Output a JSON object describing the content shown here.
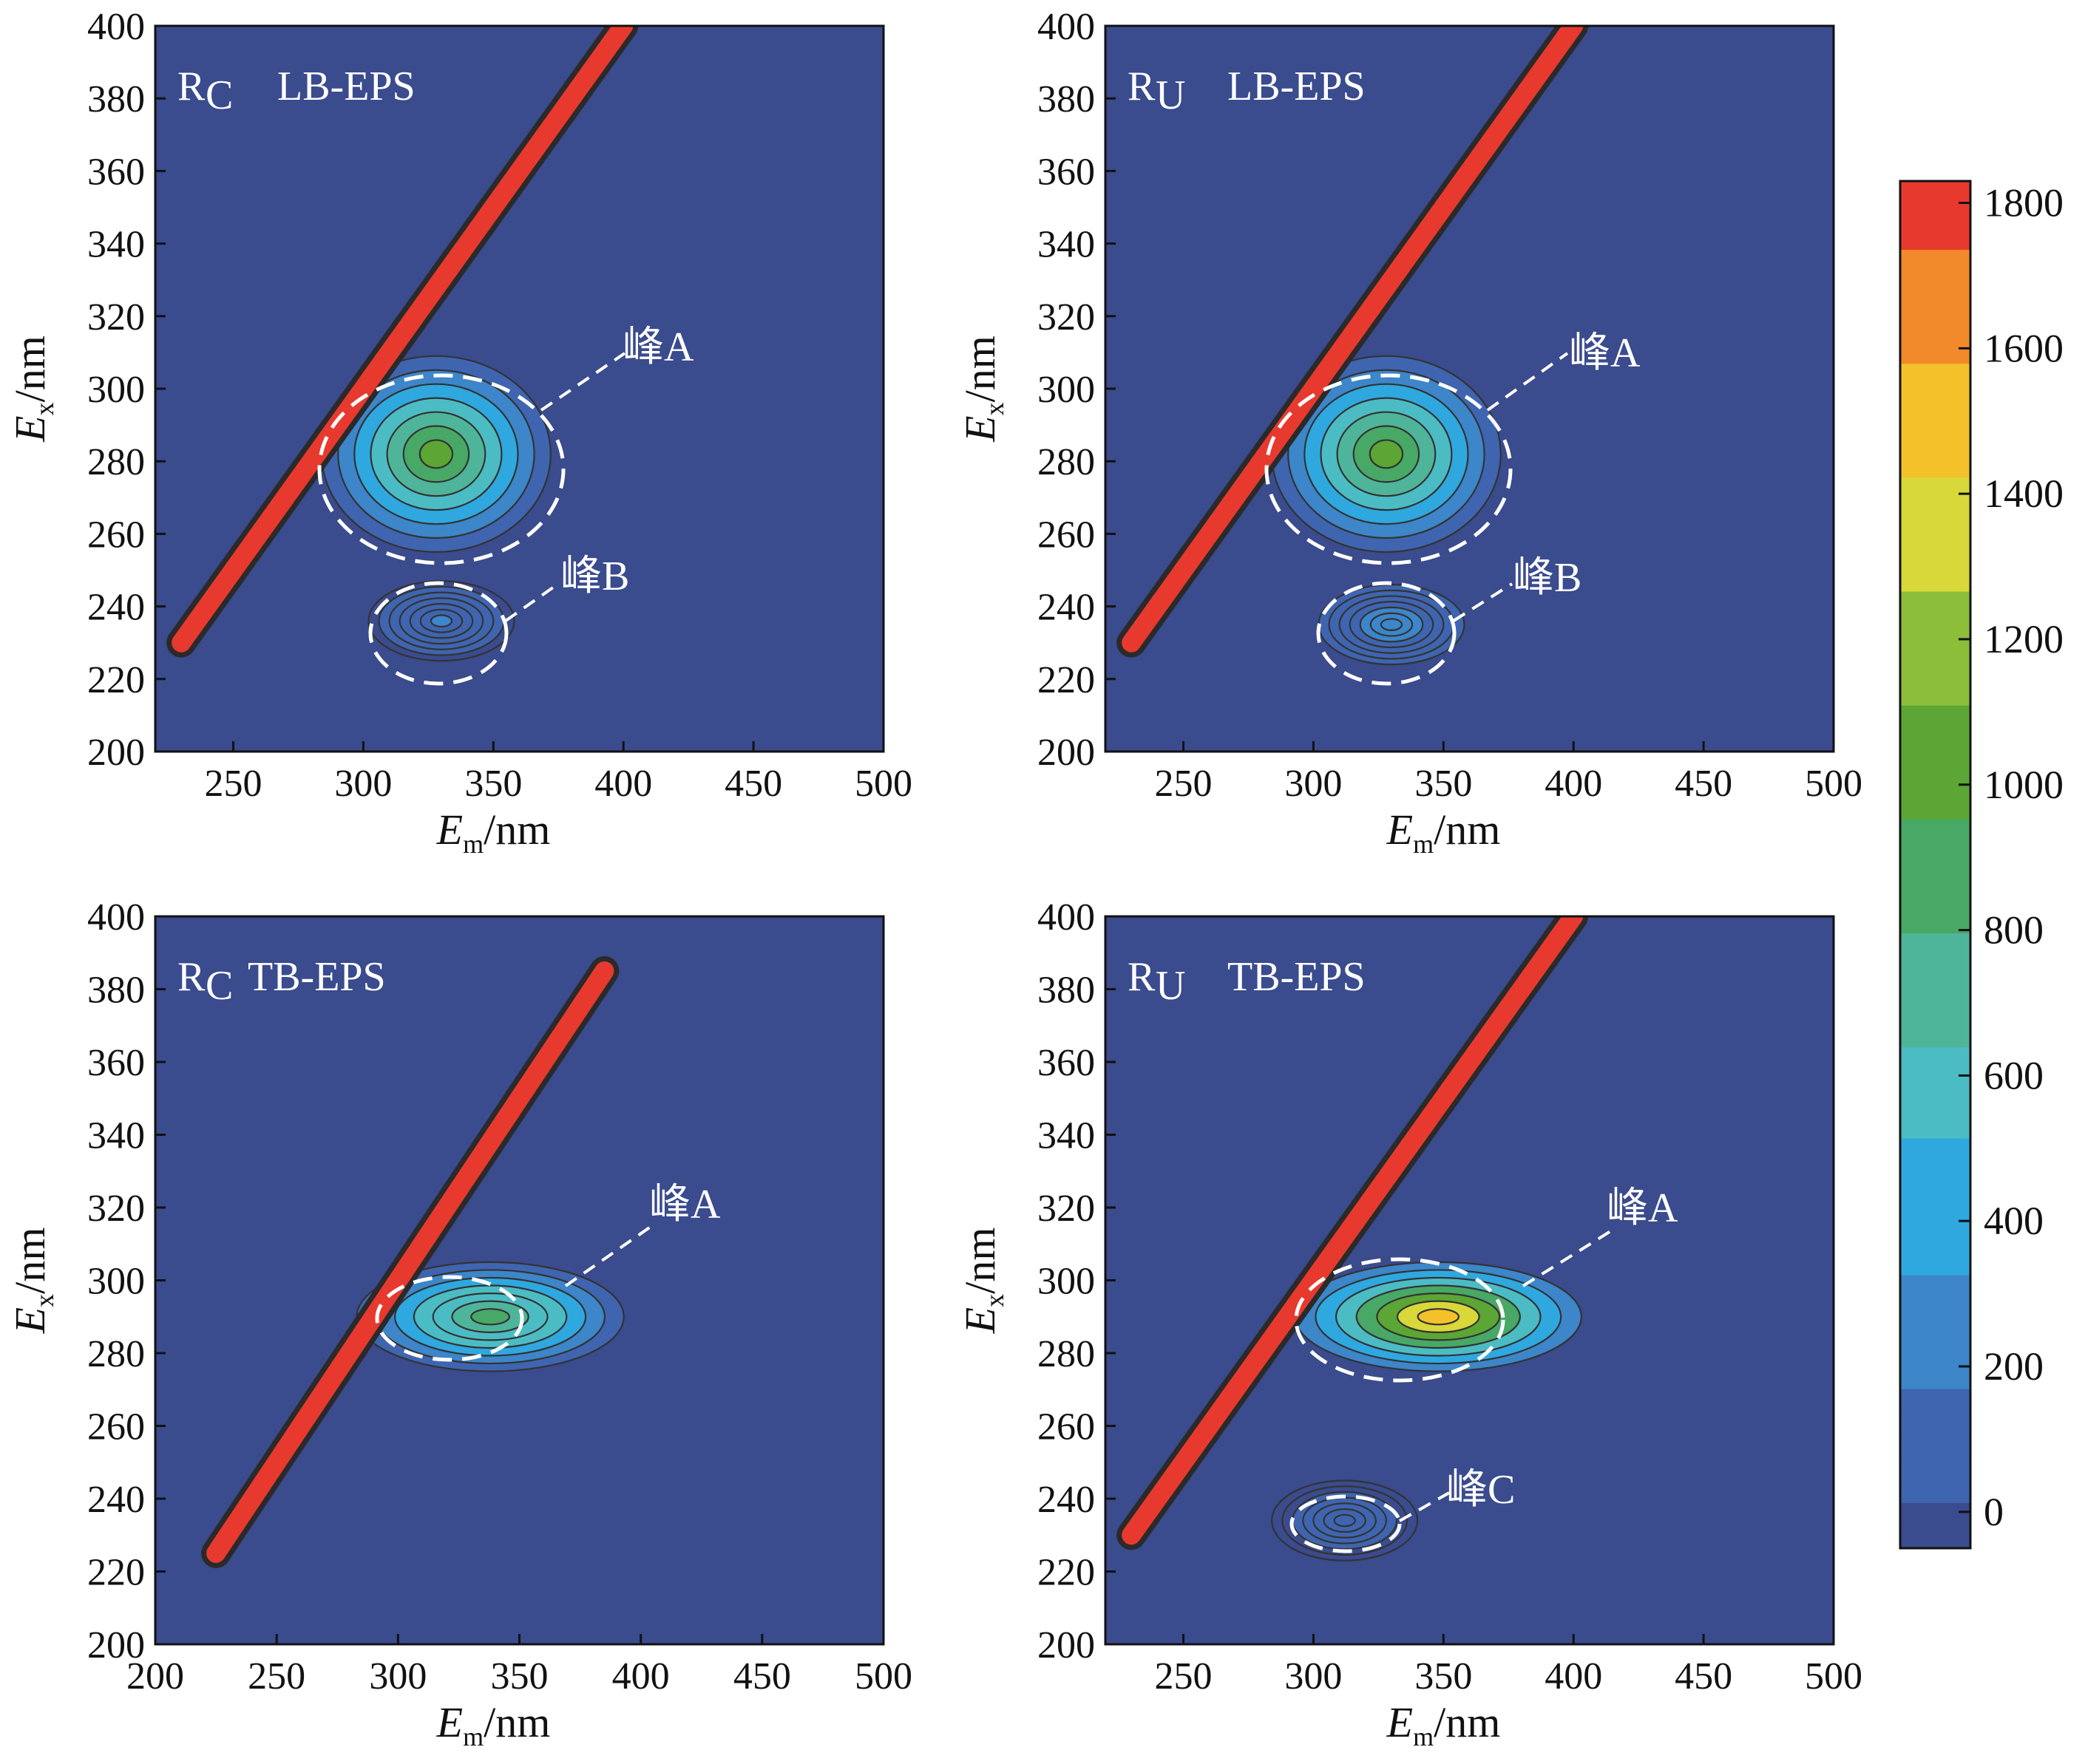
{
  "colors": {
    "background": "#3a4b8e",
    "diagonal": "#e8392e",
    "contour_line": "#333333",
    "colormap": [
      "#3a4b8e",
      "#3f65b0",
      "#3c86c9",
      "#2fa8e0",
      "#4cbcc4",
      "#4fb59a",
      "#48a865",
      "#5ba634",
      "#8cbe3a",
      "#d8d83a",
      "#f3c22b",
      "#f28a2b",
      "#e8392e"
    ]
  },
  "chart_data": [
    {
      "type": "heatmap",
      "panel_label": "R",
      "panel_sub": "C",
      "panel_title": "LB-EPS",
      "xlabel": "E",
      "xlabel_sub": "m",
      "xlabel_unit": "/nm",
      "ylabel": "E",
      "ylabel_sub": "x",
      "ylabel_unit": "/nm",
      "xlim": [
        220,
        500
      ],
      "ylim": [
        200,
        400
      ],
      "xticks": [
        "250",
        "300",
        "350",
        "400",
        "450",
        "500"
      ],
      "yticks": [
        "200",
        "220",
        "240",
        "260",
        "280",
        "300",
        "320",
        "340",
        "360",
        "380",
        "400"
      ],
      "peaks": [
        {
          "name": "峰A",
          "em": 328,
          "ex": 282,
          "intensity": 1000
        },
        {
          "name": "峰B",
          "em": 330,
          "ex": 236,
          "intensity": 200
        }
      ]
    },
    {
      "type": "heatmap",
      "panel_label": "R",
      "panel_sub": "U",
      "panel_title": "LB-EPS",
      "xlabel": "E",
      "xlabel_sub": "m",
      "xlabel_unit": "/nm",
      "ylabel": "E",
      "ylabel_sub": "x",
      "ylabel_unit": "/nm",
      "xlim": [
        220,
        500
      ],
      "ylim": [
        200,
        400
      ],
      "xticks": [
        "250",
        "300",
        "350",
        "400",
        "450",
        "500"
      ],
      "yticks": [
        "200",
        "220",
        "240",
        "260",
        "280",
        "300",
        "320",
        "340",
        "360",
        "380",
        "400"
      ],
      "peaks": [
        {
          "name": "峰A",
          "em": 328,
          "ex": 282,
          "intensity": 1000
        },
        {
          "name": "峰B",
          "em": 330,
          "ex": 235,
          "intensity": 300
        }
      ]
    },
    {
      "type": "heatmap",
      "panel_label": "R",
      "panel_sub": "C",
      "panel_title": "TB-EPS",
      "xlabel": "E",
      "xlabel_sub": "m",
      "xlabel_unit": "/nm",
      "ylabel": "E",
      "ylabel_sub": "x",
      "ylabel_unit": "/nm",
      "xlim": [
        200,
        500
      ],
      "ylim": [
        200,
        400
      ],
      "xticks": [
        "200",
        "250",
        "300",
        "350",
        "400",
        "450",
        "500"
      ],
      "yticks": [
        "200",
        "220",
        "240",
        "260",
        "280",
        "300",
        "320",
        "340",
        "360",
        "380",
        "400"
      ],
      "peaks": [
        {
          "name": "峰A",
          "em": 338,
          "ex": 290,
          "intensity": 900
        }
      ]
    },
    {
      "type": "heatmap",
      "panel_label": "R",
      "panel_sub": "U",
      "panel_title": "TB-EPS",
      "xlabel": "E",
      "xlabel_sub": "m",
      "xlabel_unit": "/nm",
      "ylabel": "E",
      "ylabel_sub": "x",
      "ylabel_unit": "/nm",
      "xlim": [
        220,
        500
      ],
      "ylim": [
        200,
        400
      ],
      "xticks": [
        "250",
        "300",
        "350",
        "400",
        "450",
        "500"
      ],
      "yticks": [
        "200",
        "220",
        "240",
        "260",
        "280",
        "300",
        "320",
        "340",
        "360",
        "380",
        "400"
      ],
      "peaks": [
        {
          "name": "峰A",
          "em": 348,
          "ex": 290,
          "intensity": 1550
        },
        {
          "name": "峰C",
          "em": 312,
          "ex": 234,
          "intensity": 80
        }
      ]
    }
  ],
  "colorbar": {
    "range": [
      -50,
      1830
    ],
    "ticks": [
      "0",
      "200",
      "400",
      "600",
      "800",
      "1000",
      "1200",
      "1400",
      "1600",
      "1800"
    ]
  }
}
